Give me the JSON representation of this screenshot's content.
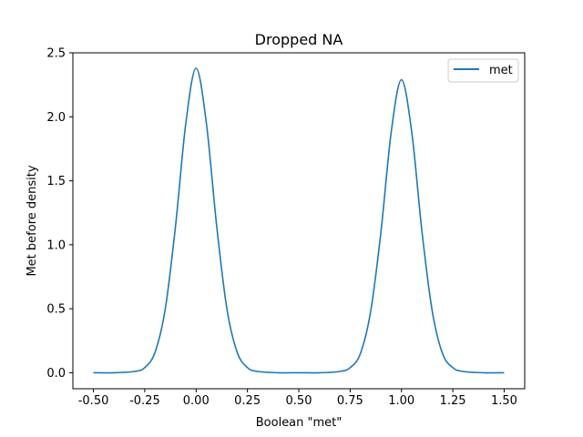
{
  "chart_data": {
    "type": "line",
    "title": "Dropped NA",
    "xlabel": "Boolean \"met\"",
    "ylabel": "Met before density",
    "xlim": [
      -0.6,
      1.6
    ],
    "ylim": [
      -0.125,
      2.5
    ],
    "xticks": [
      "-0.50",
      "-0.25",
      "0.00",
      "0.25",
      "0.50",
      "0.75",
      "1.00",
      "1.25",
      "1.50"
    ],
    "xtick_values": [
      -0.5,
      -0.25,
      0.0,
      0.25,
      0.5,
      0.75,
      1.0,
      1.25,
      1.5
    ],
    "yticks": [
      "0.0",
      "0.5",
      "1.0",
      "1.5",
      "2.0",
      "2.5"
    ],
    "ytick_values": [
      0.0,
      0.5,
      1.0,
      1.5,
      2.0,
      2.5
    ],
    "grid": false,
    "legend": {
      "position": "top-right"
    },
    "series": [
      {
        "name": "met",
        "color": "#1f77b4",
        "x": [
          -0.5,
          -0.4,
          -0.3,
          -0.25,
          -0.2,
          -0.15,
          -0.1,
          -0.05,
          0.0,
          0.05,
          0.1,
          0.15,
          0.2,
          0.25,
          0.3,
          0.4,
          0.5,
          0.6,
          0.7,
          0.75,
          0.8,
          0.85,
          0.9,
          0.95,
          1.0,
          1.05,
          1.1,
          1.15,
          1.2,
          1.25,
          1.3,
          1.4,
          1.5
        ],
        "y": [
          0.0,
          0.0,
          0.01,
          0.04,
          0.16,
          0.5,
          1.15,
          1.95,
          2.38,
          1.95,
          1.15,
          0.5,
          0.16,
          0.04,
          0.01,
          0.0,
          0.0,
          0.0,
          0.01,
          0.04,
          0.15,
          0.48,
          1.1,
          1.88,
          2.29,
          1.88,
          1.1,
          0.48,
          0.15,
          0.04,
          0.01,
          0.0,
          0.0
        ]
      }
    ]
  }
}
